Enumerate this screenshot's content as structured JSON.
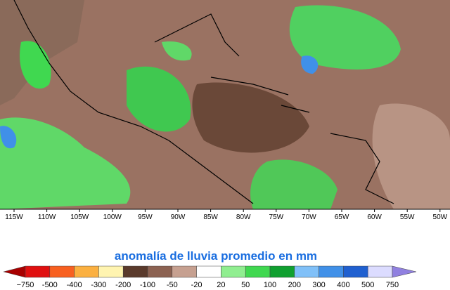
{
  "map": {
    "longitude_labels": [
      "115W",
      "110W",
      "105W",
      "100W",
      "95W",
      "90W",
      "85W",
      "80W",
      "75W",
      "70W",
      "65W",
      "60W",
      "55W",
      "50W"
    ]
  },
  "legend": {
    "title": "anomalía de lluvia promedio en mm",
    "labels": [
      "−750",
      "-500",
      "-400",
      "-300",
      "-200",
      "-100",
      "-50",
      "-20",
      "20",
      "50",
      "100",
      "200",
      "300",
      "400",
      "500",
      "750"
    ],
    "colors": [
      "#a80000",
      "#e01010",
      "#f86020",
      "#fbb040",
      "#fff4b0",
      "#5a3a2c",
      "#8c6252",
      "#c6a090",
      "#ffffff",
      "#90ee90",
      "#40d850",
      "#10a030",
      "#80c0f8",
      "#4090e8",
      "#2060d0",
      "#dcdcff",
      "#9080e0"
    ]
  }
}
